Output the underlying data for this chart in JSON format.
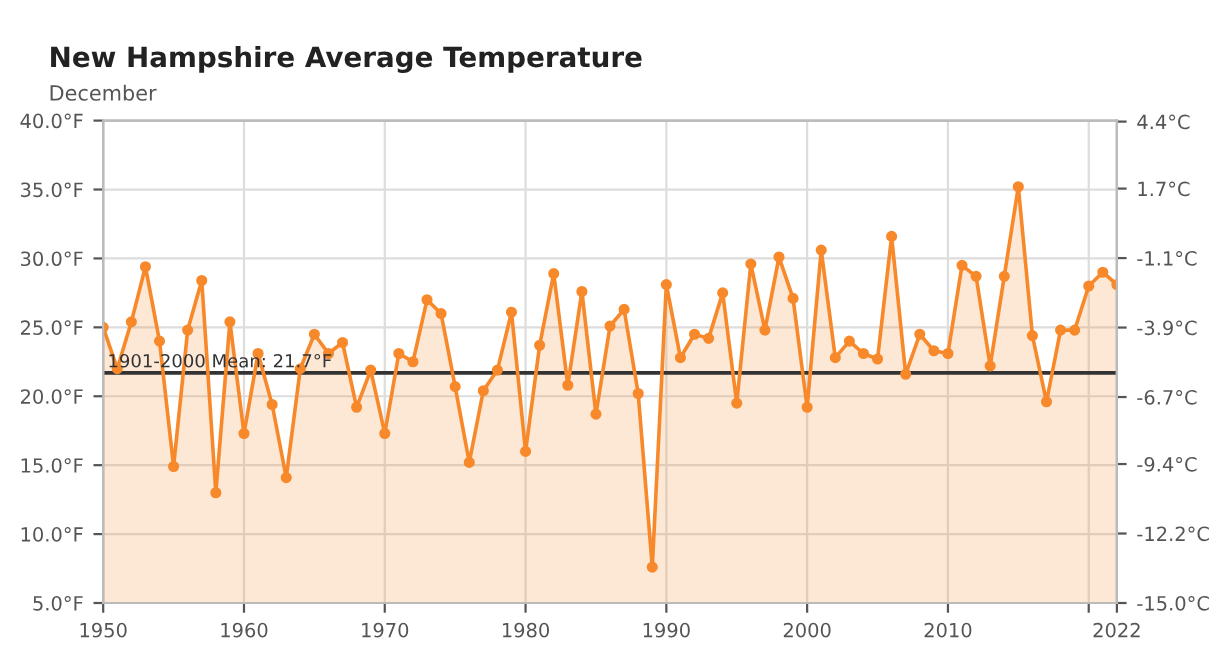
{
  "chart_data": {
    "type": "area",
    "title": "New Hampshire Average Temperature",
    "subtitle": "December",
    "x": [
      1950,
      1951,
      1952,
      1953,
      1954,
      1955,
      1956,
      1957,
      1958,
      1959,
      1960,
      1961,
      1962,
      1963,
      1964,
      1965,
      1966,
      1967,
      1968,
      1969,
      1970,
      1971,
      1972,
      1973,
      1974,
      1975,
      1976,
      1977,
      1978,
      1979,
      1980,
      1981,
      1982,
      1983,
      1984,
      1985,
      1986,
      1987,
      1988,
      1989,
      1990,
      1991,
      1992,
      1993,
      1994,
      1995,
      1996,
      1997,
      1998,
      1999,
      2000,
      2001,
      2002,
      2003,
      2004,
      2005,
      2006,
      2007,
      2008,
      2009,
      2010,
      2011,
      2012,
      2013,
      2014,
      2015,
      2016,
      2017,
      2018,
      2019,
      2020,
      2021,
      2022
    ],
    "series": [
      {
        "color": "#f7892b",
        "values": [
          25.0,
          22.0,
          25.4,
          29.4,
          24.0,
          14.9,
          24.8,
          28.4,
          13.0,
          25.4,
          17.3,
          23.1,
          19.4,
          14.1,
          22.0,
          24.5,
          23.1,
          23.9,
          19.2,
          21.9,
          17.3,
          23.1,
          22.5,
          27.0,
          26.0,
          20.7,
          15.2,
          20.4,
          21.9,
          26.1,
          16.0,
          23.7,
          28.9,
          20.8,
          27.6,
          18.7,
          25.1,
          26.3,
          20.2,
          7.6,
          28.1,
          22.8,
          24.5,
          24.2,
          27.5,
          19.5,
          29.6,
          24.8,
          30.1,
          27.1,
          19.2,
          30.6,
          22.8,
          24.0,
          23.1,
          22.7,
          31.6,
          21.6,
          24.5,
          23.3,
          23.1,
          29.5,
          28.7,
          22.2,
          28.7,
          35.2,
          24.4,
          19.6,
          24.8,
          24.8,
          28.0,
          29.0,
          28.1
        ]
      }
    ],
    "xlim": [
      1950,
      2022
    ],
    "xticks": [
      1950,
      1960,
      1970,
      1980,
      1990,
      2000,
      2010,
      {
        "value": 2020,
        "label": null
      },
      2022
    ],
    "ylim": [
      5,
      40
    ],
    "yticks": [
      {
        "value": 5,
        "label": "5.0°F"
      },
      {
        "value": 10,
        "label": "10.0°F"
      },
      {
        "value": 15,
        "label": "15.0°F"
      },
      {
        "value": 20,
        "label": "20.0°F"
      },
      {
        "value": 25,
        "label": "25.0°F"
      },
      {
        "value": 30,
        "label": "30.0°F"
      },
      {
        "value": 35,
        "label": "35.0°F"
      },
      {
        "value": 40,
        "label": "40.0°F"
      }
    ],
    "y2lim": [
      -15,
      4.44
    ],
    "y2ticks": [
      {
        "value": -15,
        "label": "-15.0°C"
      },
      {
        "value": -12.2,
        "label": "-12.2°C"
      },
      {
        "value": -9.4,
        "label": "-9.4°C"
      },
      {
        "value": -6.7,
        "label": "-6.7°C"
      },
      {
        "value": -3.9,
        "label": "-3.9°C"
      },
      {
        "value": -1.1,
        "label": "-1.1°C"
      },
      {
        "value": 1.7,
        "label": "1.7°C"
      },
      {
        "value": 4.4,
        "label": "4.4°C"
      }
    ],
    "ref_lines": [
      {
        "axis": "y",
        "value": 21.7,
        "label": "1901-2000 Mean: 21.7°F",
        "color": "#333333"
      }
    ],
    "grid": true,
    "marker": "circle",
    "line_style": "solid"
  }
}
